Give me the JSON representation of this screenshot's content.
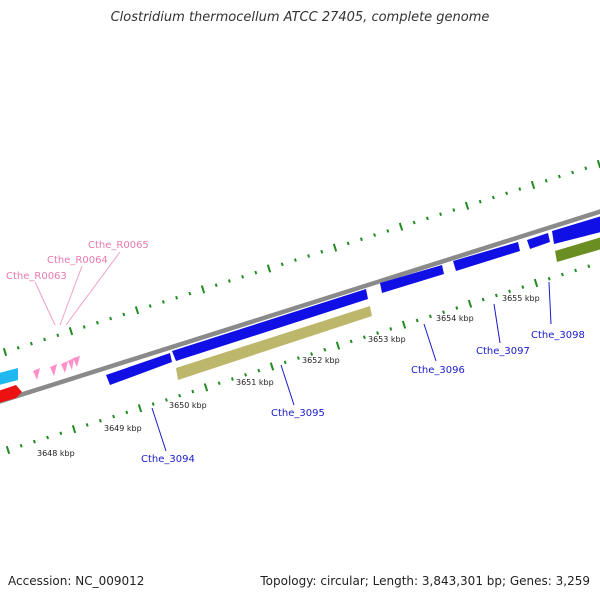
{
  "title": "Clostridium thermocellum ATCC 27405, complete genome",
  "footer": {
    "accession": "Accession: NC_009012",
    "summary": "Topology: circular; Length: 3,843,301 bp; Genes: 3,259"
  },
  "colors": {
    "backbone": "#8a8a8a",
    "cds_forward": "#1010e6",
    "cds_reverse": "#bdb76b",
    "cds_green": "#6b8e23",
    "trna": "#ff8fc8",
    "tick": "#228b22",
    "cyan": "#1fb8f0",
    "red": "#ee1111",
    "gene_label": "#1a1acc",
    "rna_label": "#e87ab0"
  },
  "ticks": [
    "3648 kbp",
    "3649 kbp",
    "3650 kbp",
    "3651 kbp",
    "3652 kbp",
    "3653 kbp",
    "3654 kbp",
    "3655 kbp"
  ],
  "genes": [
    "Cthe_3094",
    "Cthe_3095",
    "Cthe_3096",
    "Cthe_3097",
    "Cthe_3098"
  ],
  "rnas": [
    "Cthe_R0063",
    "Cthe_R0064",
    "Cthe_R0065"
  ]
}
